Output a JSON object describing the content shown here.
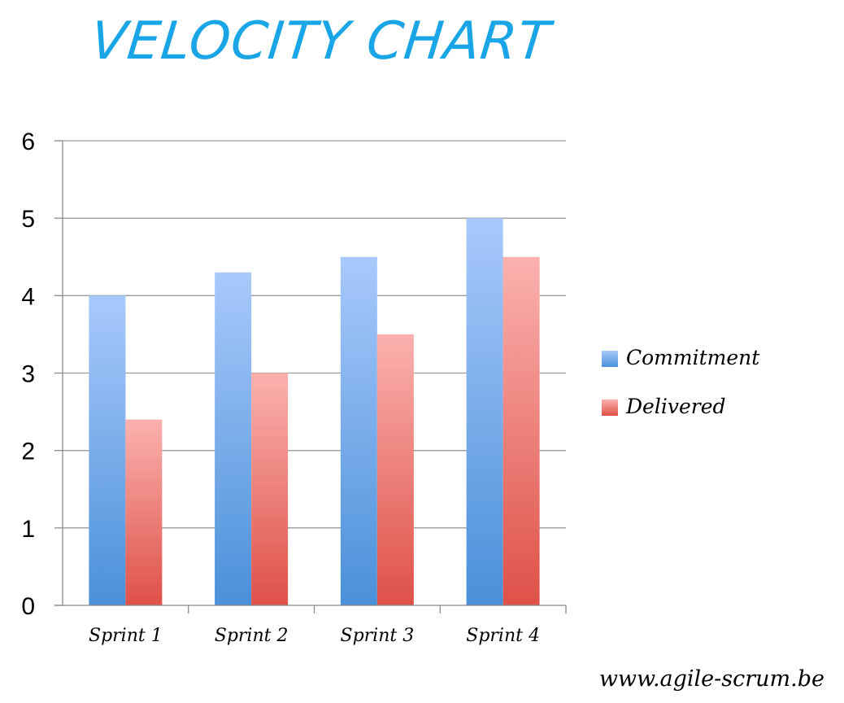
{
  "page": {
    "title": "VELOCITY CHART",
    "footer": "www.agile-scrum.be"
  },
  "colors": {
    "title": "#1aa6e6",
    "commitment_top": "#a9c9fb",
    "commitment_bottom": "#4a90d9",
    "delivered_top": "#fbb1ae",
    "delivered_bottom": "#de5148",
    "gridline": "#9a9a9a",
    "axis": "#8a8a8a"
  },
  "chart_data": {
    "type": "bar",
    "categories": [
      "Sprint 1",
      "Sprint 2",
      "Sprint 3",
      "Sprint 4"
    ],
    "series": [
      {
        "name": "Commitment",
        "values": [
          4,
          4.3,
          4.5,
          5
        ]
      },
      {
        "name": "Delivered",
        "values": [
          2.4,
          3,
          3.5,
          4.5
        ]
      }
    ],
    "ylim": [
      0,
      6
    ],
    "yticks": [
      "0",
      "1",
      "2",
      "3",
      "4",
      "5",
      "6"
    ],
    "grid": true,
    "legend_position": "right"
  }
}
